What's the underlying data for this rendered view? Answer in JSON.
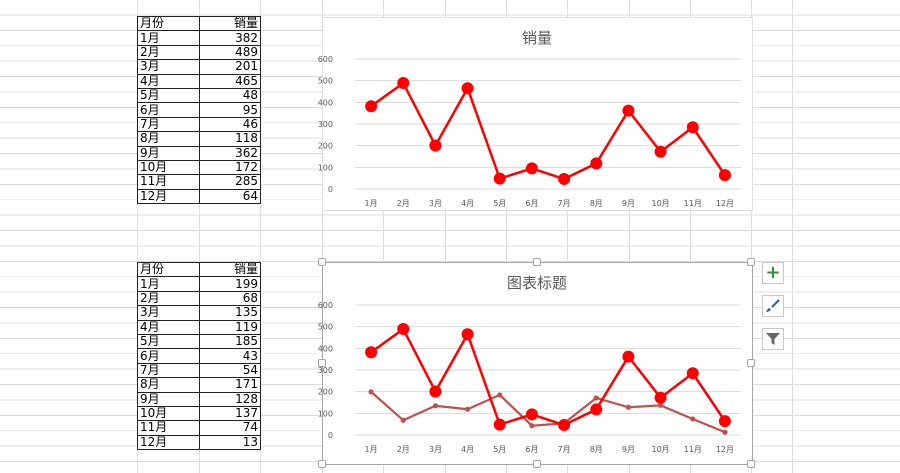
{
  "table1": {
    "header": [
      "月份",
      "销量"
    ],
    "rows": [
      [
        "1月",
        "382"
      ],
      [
        "2月",
        "489"
      ],
      [
        "3月",
        "201"
      ],
      [
        "4月",
        "465"
      ],
      [
        "5月",
        "48"
      ],
      [
        "6月",
        "95"
      ],
      [
        "7月",
        "46"
      ],
      [
        "8月",
        "118"
      ],
      [
        "9月",
        "362"
      ],
      [
        "10月",
        "172"
      ],
      [
        "11月",
        "285"
      ],
      [
        "12月",
        "64"
      ]
    ]
  },
  "table2": {
    "header": [
      "月份",
      "销量"
    ],
    "rows": [
      [
        "1月",
        "199"
      ],
      [
        "2月",
        "68"
      ],
      [
        "3月",
        "135"
      ],
      [
        "4月",
        "119"
      ],
      [
        "5月",
        "185"
      ],
      [
        "6月",
        "43"
      ],
      [
        "7月",
        "54"
      ],
      [
        "8月",
        "171"
      ],
      [
        "9月",
        "128"
      ],
      [
        "10月",
        "137"
      ],
      [
        "11月",
        "74"
      ],
      [
        "12月",
        "13"
      ]
    ]
  },
  "chart_data": [
    {
      "type": "line",
      "title": "销量",
      "categories": [
        "1月",
        "2月",
        "3月",
        "4月",
        "5月",
        "6月",
        "7月",
        "8月",
        "9月",
        "10月",
        "11月",
        "12月"
      ],
      "ylim": [
        0,
        600
      ],
      "yticks": [
        0,
        100,
        200,
        300,
        400,
        500,
        600
      ],
      "grid": true,
      "series": [
        {
          "values": [
            382,
            489,
            201,
            465,
            48,
            95,
            46,
            118,
            362,
            172,
            285,
            64
          ],
          "color": "#ff0000",
          "marker": "large"
        }
      ]
    },
    {
      "type": "line",
      "title": "图表标题",
      "categories": [
        "1月",
        "2月",
        "3月",
        "4月",
        "5月",
        "6月",
        "7月",
        "8月",
        "9月",
        "10月",
        "11月",
        "12月"
      ],
      "ylim": [
        0,
        600
      ],
      "yticks": [
        0,
        100,
        200,
        300,
        400,
        500,
        600
      ],
      "grid": true,
      "series": [
        {
          "values": [
            382,
            489,
            201,
            465,
            48,
            95,
            46,
            118,
            362,
            172,
            285,
            64
          ],
          "color": "#ff0000",
          "marker": "large"
        },
        {
          "values": [
            199,
            68,
            135,
            119,
            185,
            43,
            54,
            171,
            128,
            137,
            74,
            13
          ],
          "color": "#c0504d",
          "marker": "small"
        }
      ]
    }
  ],
  "side_buttons": [
    {
      "icon": "plus-icon",
      "color": "#3c8a3c"
    },
    {
      "icon": "brush-icon",
      "color": "#2f5f9e"
    },
    {
      "icon": "filter-icon",
      "color": "#666666"
    }
  ]
}
